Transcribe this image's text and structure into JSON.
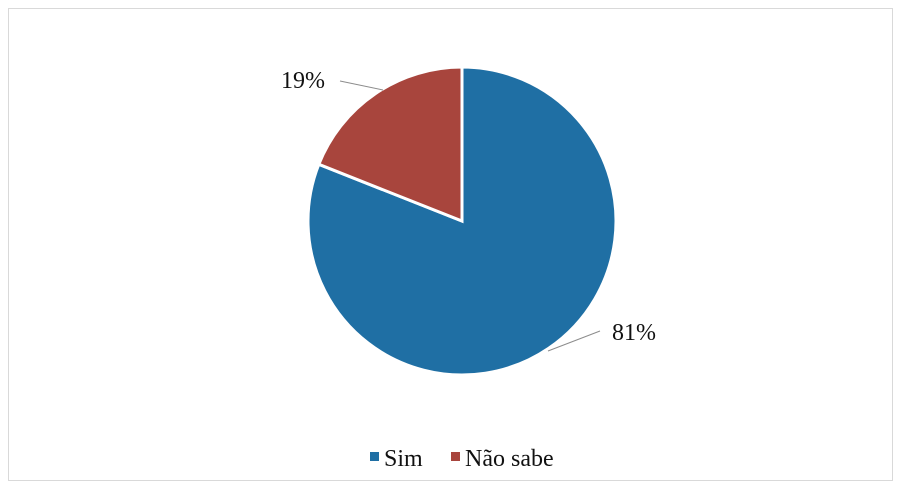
{
  "chart_data": {
    "type": "pie",
    "slices": [
      {
        "name": "Sim",
        "value": 81,
        "label": "81%",
        "color": "#1f6fa4"
      },
      {
        "name": "Não sabe",
        "value": 19,
        "label": "19%",
        "color": "#a8453d"
      }
    ],
    "legend": {
      "placement": "bottom"
    },
    "title": ""
  }
}
